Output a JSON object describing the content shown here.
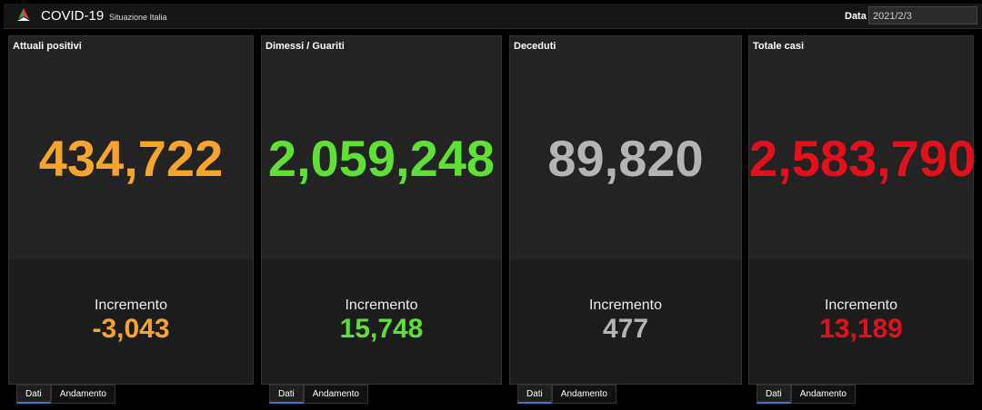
{
  "header": {
    "title": "COVID-19",
    "subtitle": "Situazione Italia",
    "date_label": "Data",
    "date_value": "2021/2/3"
  },
  "cards": [
    {
      "title": "Attuali positivi",
      "value": "434,722",
      "increment_label": "Incremento",
      "increment": "-3,043",
      "tabs": [
        "Dati",
        "Andamento"
      ]
    },
    {
      "title": "Dimessi / Guariti",
      "value": "2,059,248",
      "increment_label": "Incremento",
      "increment": "15,748",
      "tabs": [
        "Dati",
        "Andamento"
      ]
    },
    {
      "title": "Deceduti",
      "value": "89,820",
      "increment_label": "Incremento",
      "increment": "477",
      "tabs": [
        "Dati",
        "Andamento"
      ]
    },
    {
      "title": "Totale casi",
      "value": "2,583,790",
      "increment_label": "Incremento",
      "increment": "13,189",
      "tabs": [
        "Dati",
        "Andamento"
      ]
    }
  ]
}
